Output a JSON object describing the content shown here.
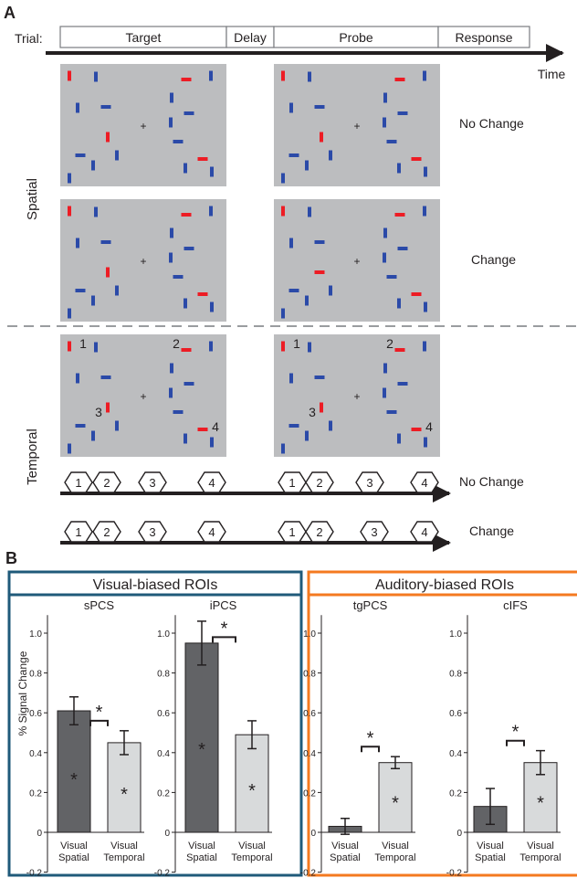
{
  "panel_a": {
    "label": "A",
    "timeline": {
      "trial_label": "Trial:",
      "phases": [
        "Target",
        "Delay",
        "Probe",
        "Response"
      ],
      "axis_label": "Time"
    },
    "row_labels": {
      "spatial": "Spatial",
      "temporal": "Temporal"
    },
    "conditions": {
      "no_change": "No Change",
      "change": "Change"
    },
    "temporal_numbers": [
      "1",
      "2",
      "3",
      "4"
    ],
    "sequence_numbers": [
      "1",
      "2",
      "3",
      "4"
    ]
  },
  "panel_b": {
    "label": "B",
    "group_visual": "Visual-biased ROIs",
    "group_auditory": "Auditory-biased ROIs",
    "group_colors": {
      "visual": "#1f5a7a",
      "auditory": "#f47a20"
    },
    "bar_colors": {
      "spatial": "#626366",
      "temporal": "#d8dadb"
    },
    "significance_mark": "*"
  },
  "chart_data": {
    "type": "bar",
    "ylabel": "% Signal Change",
    "ylim": [
      -0.2,
      1.1
    ],
    "yticks": [
      "-0.2",
      "0",
      "0.2",
      "0.4",
      "0.6",
      "0.8",
      "1.0"
    ],
    "categories": [
      [
        "Visual",
        "Spatial"
      ],
      [
        "Visual",
        "Temporal"
      ]
    ],
    "subplots": [
      {
        "title": "sPCS",
        "values": [
          0.61,
          0.45
        ],
        "errors": [
          0.07,
          0.06
        ]
      },
      {
        "title": "iPCS",
        "values": [
          0.95,
          0.49
        ],
        "errors": [
          0.11,
          0.07
        ]
      },
      {
        "title": "tgPCS",
        "values": [
          0.03,
          0.35
        ],
        "errors": [
          0.04,
          0.03
        ]
      },
      {
        "title": "cIFS",
        "values": [
          0.13,
          0.35
        ],
        "errors": [
          0.09,
          0.06
        ]
      }
    ]
  }
}
